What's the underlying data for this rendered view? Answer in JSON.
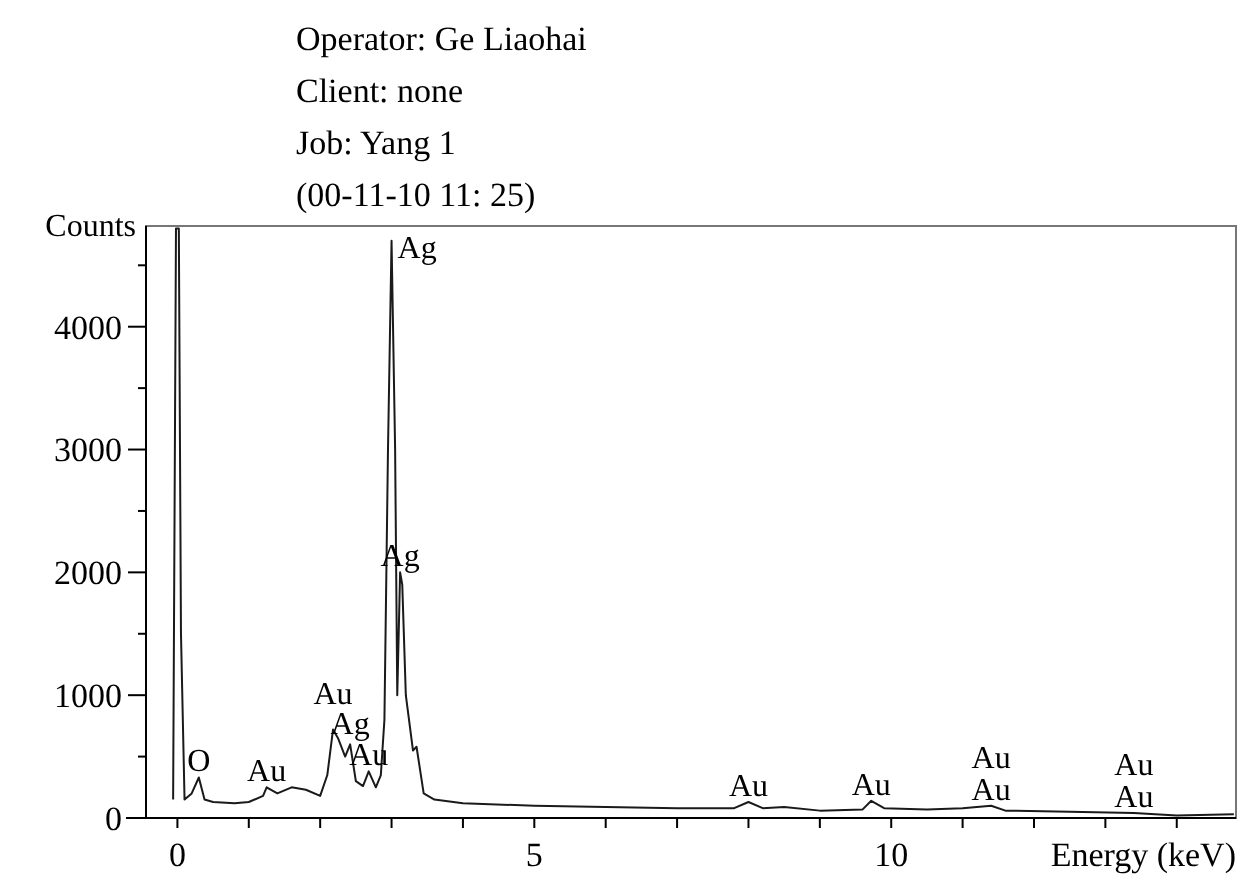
{
  "chart_data": {
    "type": "line",
    "xlabel": "Energy (keV)",
    "ylabel": "Counts",
    "x": [
      -0.06,
      -0.02,
      0.02,
      0.05,
      0.1,
      0.2,
      0.3,
      0.38,
      0.5,
      0.8,
      1.0,
      1.2,
      1.25,
      1.4,
      1.6,
      1.8,
      2.0,
      2.1,
      2.18,
      2.25,
      2.35,
      2.42,
      2.5,
      2.6,
      2.68,
      2.78,
      2.85,
      2.9,
      2.95,
      3.0,
      3.05,
      3.08,
      3.12,
      3.15,
      3.2,
      3.3,
      3.35,
      3.45,
      3.6,
      4.0,
      5,
      6,
      7,
      7.8,
      8.0,
      8.2,
      8.5,
      9.0,
      9.6,
      9.72,
      9.9,
      10.5,
      11.0,
      11.4,
      11.6,
      12.5,
      13.4,
      14.0,
      14.8
    ],
    "series": [
      {
        "color": "#1a1a1a",
        "values": [
          150,
          4800,
          4800,
          1500,
          150,
          200,
          330,
          150,
          130,
          120,
          130,
          180,
          250,
          200,
          250,
          230,
          180,
          350,
          720,
          650,
          500,
          600,
          300,
          260,
          380,
          250,
          350,
          800,
          3000,
          4700,
          3000,
          1000,
          2000,
          1900,
          1000,
          550,
          580,
          200,
          150,
          120,
          100,
          90,
          80,
          80,
          130,
          80,
          90,
          60,
          70,
          140,
          80,
          70,
          80,
          100,
          60,
          50,
          40,
          20,
          30
        ]
      }
    ],
    "xlim": [
      -0.44,
      14.83
    ],
    "ylim": [
      0,
      4820
    ],
    "xticks": [
      0,
      {
        "value": 1,
        "label": null
      },
      {
        "value": 2,
        "label": null
      },
      {
        "value": 3,
        "label": null
      },
      {
        "value": 4,
        "label": null
      },
      5,
      {
        "value": 6,
        "label": null
      },
      {
        "value": 7,
        "label": null
      },
      {
        "value": 8,
        "label": null
      },
      {
        "value": 9,
        "label": null
      },
      10,
      {
        "value": 11,
        "label": null
      },
      {
        "value": 12,
        "label": null
      },
      {
        "value": 13,
        "label": null
      },
      {
        "value": 14,
        "label": null
      }
    ],
    "yticks": [
      0,
      {
        "value": 500,
        "label": null
      },
      1000,
      {
        "value": 1500,
        "label": null
      },
      2000,
      {
        "value": 2500,
        "label": null
      },
      3000,
      {
        "value": 3500,
        "label": null
      },
      4000,
      {
        "value": 4500,
        "label": null
      }
    ],
    "grid": false,
    "marker": "none",
    "line_style": "solid",
    "annotations": [
      "Operator: Ge Liaohai",
      "Client: none",
      "Job: Yang 1",
      "(00-11-10 11: 25)",
      {
        "text": "Ag",
        "x": 3.0,
        "y": 4700
      },
      {
        "text": "Ag",
        "x": 3.12,
        "y": 2000
      },
      {
        "text": "Au",
        "x": 2.68,
        "y": 380
      },
      {
        "text": "Ag",
        "x": 2.42,
        "y": 600
      },
      {
        "text": "Au",
        "x": 2.18,
        "y": 720
      },
      {
        "text": "O",
        "x": 0.3,
        "y": 330
      },
      {
        "text": "Au",
        "x": 1.25,
        "y": 250
      },
      {
        "text": "Au",
        "x": 8.0,
        "y": 130
      },
      {
        "text": "Au",
        "x": 9.72,
        "y": 140
      },
      {
        "text": "Au",
        "x": 11.4,
        "y": 100
      },
      {
        "text": "Au",
        "x": 11.4,
        "y": 100
      },
      {
        "text": "Au",
        "x": 13.4,
        "y": 40
      },
      {
        "text": "Au",
        "x": 13.4,
        "y": 40
      }
    ]
  }
}
